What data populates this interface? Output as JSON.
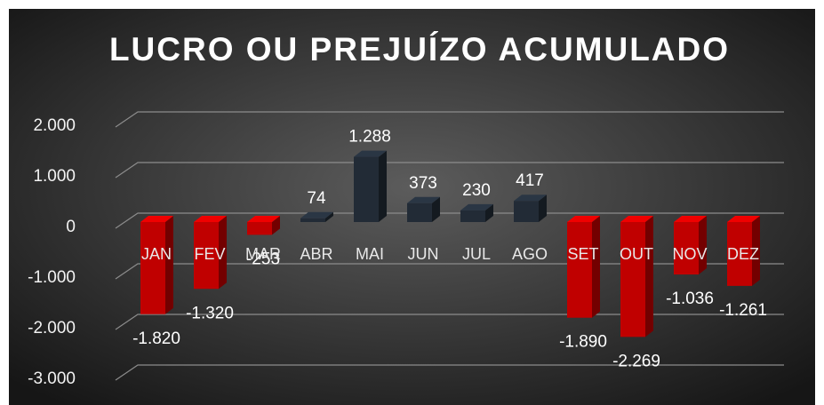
{
  "chart_data": {
    "type": "bar3d",
    "title": "LUCRO OU PREJUÍZO ACUMULADO",
    "categories": [
      "JAN",
      "FEV",
      "MAR",
      "ABR",
      "MAI",
      "JUN",
      "JUL",
      "AGO",
      "SET",
      "OUT",
      "NOV",
      "DEZ"
    ],
    "values": [
      -1820,
      -1320,
      -253,
      74,
      1288,
      373,
      230,
      417,
      -1890,
      -2269,
      -1036,
      -1261
    ],
    "value_labels": [
      "-1.820",
      "-1.320",
      "-253",
      "74",
      "1.288",
      "373",
      "230",
      "417",
      "-1.890",
      "-2.269",
      "-1.036",
      "-1.261"
    ],
    "color": "#222b36",
    "negative_color": "#c00000",
    "ylim": [
      -3000,
      2000
    ],
    "yticks": [
      {
        "value": -3000,
        "label": "-3.000"
      },
      {
        "value": -2000,
        "label": "-2.000"
      },
      {
        "value": -1000,
        "label": "-1.000"
      },
      0,
      {
        "value": 1000,
        "label": "1.000"
      },
      {
        "value": 2000,
        "label": "2.000"
      }
    ],
    "grid": true
  }
}
